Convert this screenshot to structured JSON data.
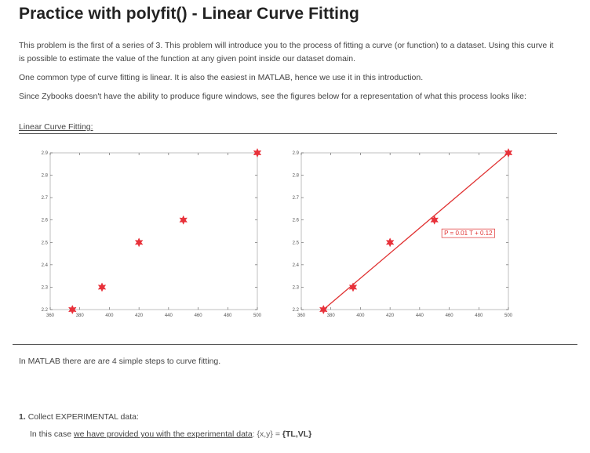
{
  "title": "Practice with polyfit() - Linear Curve Fitting",
  "intro": {
    "p1": "This problem is the first of a series of 3. This problem will introduce you to the process of fitting a curve (or function) to a dataset. Using this curve it is possible to estimate the value of the function at any given point inside our dataset domain.",
    "p2": "One common type of curve fitting is linear. It is also the easiest in MATLAB, hence we use it in this introduction.",
    "p3": "Since Zybooks doesn't have the ability to produce figure windows, see the figures below for a representation of what this process looks like:"
  },
  "section_label": "Linear Curve Fitting:",
  "colors": {
    "marker": "#e8313a",
    "fit_line": "#e03030",
    "axis": "#555555",
    "text": "#444444"
  },
  "chart_data": [
    {
      "type": "scatter",
      "title": "",
      "xlabel": "",
      "ylabel": "",
      "xlim": [
        360,
        500
      ],
      "ylim": [
        2.2,
        2.9
      ],
      "xticks": [
        360,
        380,
        400,
        420,
        440,
        460,
        480,
        500
      ],
      "yticks": [
        2.2,
        2.3,
        2.4,
        2.5,
        2.6,
        2.7,
        2.8,
        2.9
      ],
      "x": [
        375,
        395,
        420,
        450,
        500
      ],
      "y": [
        2.2,
        2.3,
        2.5,
        2.6,
        2.9
      ],
      "marker": "hexagram",
      "grid": false
    },
    {
      "type": "scatter",
      "title": "",
      "xlabel": "",
      "ylabel": "",
      "xlim": [
        360,
        500
      ],
      "ylim": [
        2.2,
        2.9
      ],
      "xticks": [
        360,
        380,
        400,
        420,
        440,
        460,
        480,
        500
      ],
      "yticks": [
        2.2,
        2.3,
        2.4,
        2.5,
        2.6,
        2.7,
        2.8,
        2.9
      ],
      "x": [
        375,
        395,
        420,
        450,
        500
      ],
      "y": [
        2.2,
        2.3,
        2.5,
        2.6,
        2.9
      ],
      "marker": "hexagram",
      "fit_line": {
        "x": [
          375,
          500
        ],
        "y": [
          2.2,
          2.9
        ]
      },
      "annotation": "P = 0.01 T + 0.12",
      "grid": false
    }
  ],
  "steps_intro": "In MATLAB there are are 4 simple steps to curve fitting.",
  "step1": {
    "number": "1.",
    "title": "Collect EXPERIMENTAL data:",
    "desc_a": "In this case ",
    "desc_link": "we have provided you with the experimental data",
    "desc_b": ": {x,y} = ",
    "desc_bold": "{TL,VL}"
  }
}
